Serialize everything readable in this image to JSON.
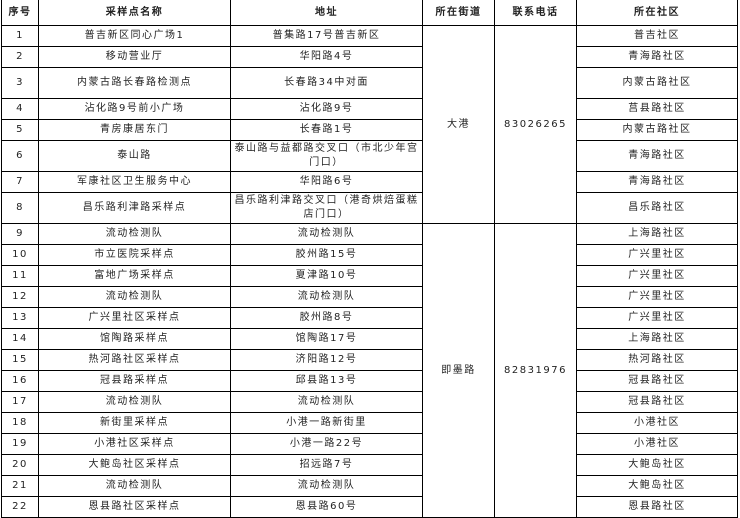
{
  "headers": [
    "序号",
    "采样点名称",
    "地址",
    "所在街道",
    "联系电话",
    "所在社区"
  ],
  "groups": [
    {
      "street": "大港",
      "phone": "83026265"
    },
    {
      "street": "即墨路",
      "phone": "82831976"
    }
  ],
  "rows": [
    {
      "no": "1",
      "name": "普吉新区同心广场1",
      "address": "普集路17号普吉新区",
      "community": "普吉社区"
    },
    {
      "no": "2",
      "name": "移动营业厅",
      "address": "华阳路4号",
      "community": "青海路社区"
    },
    {
      "no": "3",
      "name": "内蒙古路长春路检测点",
      "address": "长春路34中对面",
      "community": "内蒙古路社区"
    },
    {
      "no": "4",
      "name": "沾化路9号前小广场",
      "address": "沾化路9号",
      "community": "莒县路社区"
    },
    {
      "no": "5",
      "name": "青房康居东门",
      "address": "长春路1号",
      "community": "内蒙古路社区"
    },
    {
      "no": "6",
      "name": "泰山路",
      "address": "泰山路与益都路交叉口（市北少年宫门口）",
      "community": "青海路社区"
    },
    {
      "no": "7",
      "name": "军康社区卫生服务中心",
      "address": "华阳路6号",
      "community": "青海路社区"
    },
    {
      "no": "8",
      "name": "昌乐路利津路采样点",
      "address": "昌乐路利津路交叉口（港奇烘焙蛋糕店门口）",
      "community": "昌乐路社区"
    },
    {
      "no": "9",
      "name": "流动检测队",
      "address": "流动检测队",
      "community": "上海路社区"
    },
    {
      "no": "10",
      "name": "市立医院采样点",
      "address": "胶州路15号",
      "community": "广兴里社区"
    },
    {
      "no": "11",
      "name": "富地广场采样点",
      "address": "夏津路10号",
      "community": "广兴里社区"
    },
    {
      "no": "12",
      "name": "流动检测队",
      "address": "流动检测队",
      "community": "广兴里社区"
    },
    {
      "no": "13",
      "name": "广兴里社区采样点",
      "address": "胶州路8号",
      "community": "广兴里社区"
    },
    {
      "no": "14",
      "name": "馆陶路采样点",
      "address": "馆陶路17号",
      "community": "上海路社区"
    },
    {
      "no": "15",
      "name": "热河路社区采样点",
      "address": "济阳路12号",
      "community": "热河路社区"
    },
    {
      "no": "16",
      "name": "冠县路采样点",
      "address": "邱县路13号",
      "community": "冠县路社区"
    },
    {
      "no": "17",
      "name": "流动检测队",
      "address": "流动检测队",
      "community": "冠县路社区"
    },
    {
      "no": "18",
      "name": "新街里采样点",
      "address": "小港一路新街里",
      "community": "小港社区"
    },
    {
      "no": "19",
      "name": "小港社区采样点",
      "address": "小港一路22号",
      "community": "小港社区"
    },
    {
      "no": "20",
      "name": "大鲍岛社区采样点",
      "address": "招远路7号",
      "community": "大鲍岛社区"
    },
    {
      "no": "21",
      "name": "流动检测队",
      "address": "流动检测队",
      "community": "大鲍岛社区"
    },
    {
      "no": "22",
      "name": "恩县路社区采样点",
      "address": "恩县路60号",
      "community": "恩县路社区"
    }
  ]
}
